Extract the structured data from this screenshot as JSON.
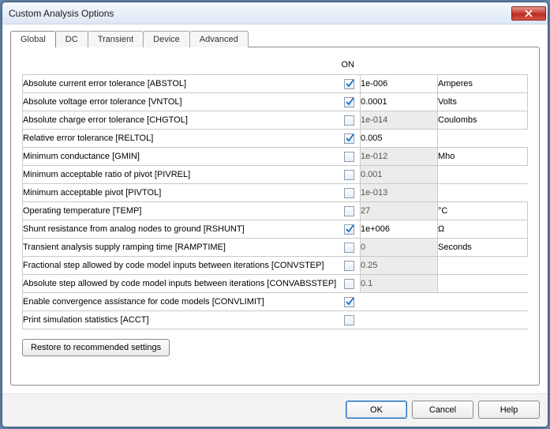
{
  "window": {
    "title": "Custom Analysis Options"
  },
  "tabs": [
    {
      "label": "Global",
      "active": true
    },
    {
      "label": "DC",
      "active": false
    },
    {
      "label": "Transient",
      "active": false
    },
    {
      "label": "Device",
      "active": false
    },
    {
      "label": "Advanced",
      "active": false
    }
  ],
  "columns": {
    "on": "ON"
  },
  "rows": [
    {
      "label": "Absolute current error tolerance [ABSTOL]",
      "on": true,
      "value": "1e-006",
      "value_enabled": true,
      "unit": "Amperes"
    },
    {
      "label": "Absolute voltage error tolerance [VNTOL]",
      "on": true,
      "value": "0.0001",
      "value_enabled": true,
      "unit": "Volts"
    },
    {
      "label": "Absolute charge error tolerance [CHGTOL]",
      "on": false,
      "value": "1e-014",
      "value_enabled": false,
      "unit": "Coulombs"
    },
    {
      "label": "Relative error tolerance [RELTOL]",
      "on": true,
      "value": "0.005",
      "value_enabled": true,
      "unit": ""
    },
    {
      "label": "Minimum conductance [GMIN]",
      "on": false,
      "value": "1e-012",
      "value_enabled": false,
      "unit": "Mho"
    },
    {
      "label": "Minimum acceptable ratio of pivot [PIVREL]",
      "on": false,
      "value": "0.001",
      "value_enabled": false,
      "unit": ""
    },
    {
      "label": "Minimum acceptable pivot [PIVTOL]",
      "on": false,
      "value": "1e-013",
      "value_enabled": false,
      "unit": ""
    },
    {
      "label": "Operating temperature [TEMP]",
      "on": false,
      "value": "27",
      "value_enabled": false,
      "unit": "°C"
    },
    {
      "label": "Shunt resistance from analog nodes to ground [RSHUNT]",
      "on": true,
      "value": "1e+006",
      "value_enabled": true,
      "unit": "Ω"
    },
    {
      "label": "Transient analysis supply ramping time [RAMPTIME]",
      "on": false,
      "value": "0",
      "value_enabled": false,
      "unit": "Seconds"
    },
    {
      "label": "Fractional step allowed by code model inputs between iterations [CONVSTEP]",
      "on": false,
      "value": "0.25",
      "value_enabled": false,
      "unit": ""
    },
    {
      "label": "Absolute step allowed by code model inputs between iterations [CONVABSSTEP]",
      "on": false,
      "value": "0.1",
      "value_enabled": false,
      "unit": ""
    },
    {
      "label": "Enable convergence assistance for code models [CONVLIMIT]",
      "on": true,
      "value": null,
      "value_enabled": false,
      "unit": ""
    },
    {
      "label": "Print simulation statistics [ACCT]",
      "on": false,
      "value": null,
      "value_enabled": false,
      "unit": ""
    }
  ],
  "buttons": {
    "restore": "Restore to recommended settings",
    "ok": "OK",
    "cancel": "Cancel",
    "help": "Help"
  },
  "colors": {
    "accent": "#2f71b8",
    "check": "#1a6fbf",
    "disabled_bg": "#ececec"
  }
}
